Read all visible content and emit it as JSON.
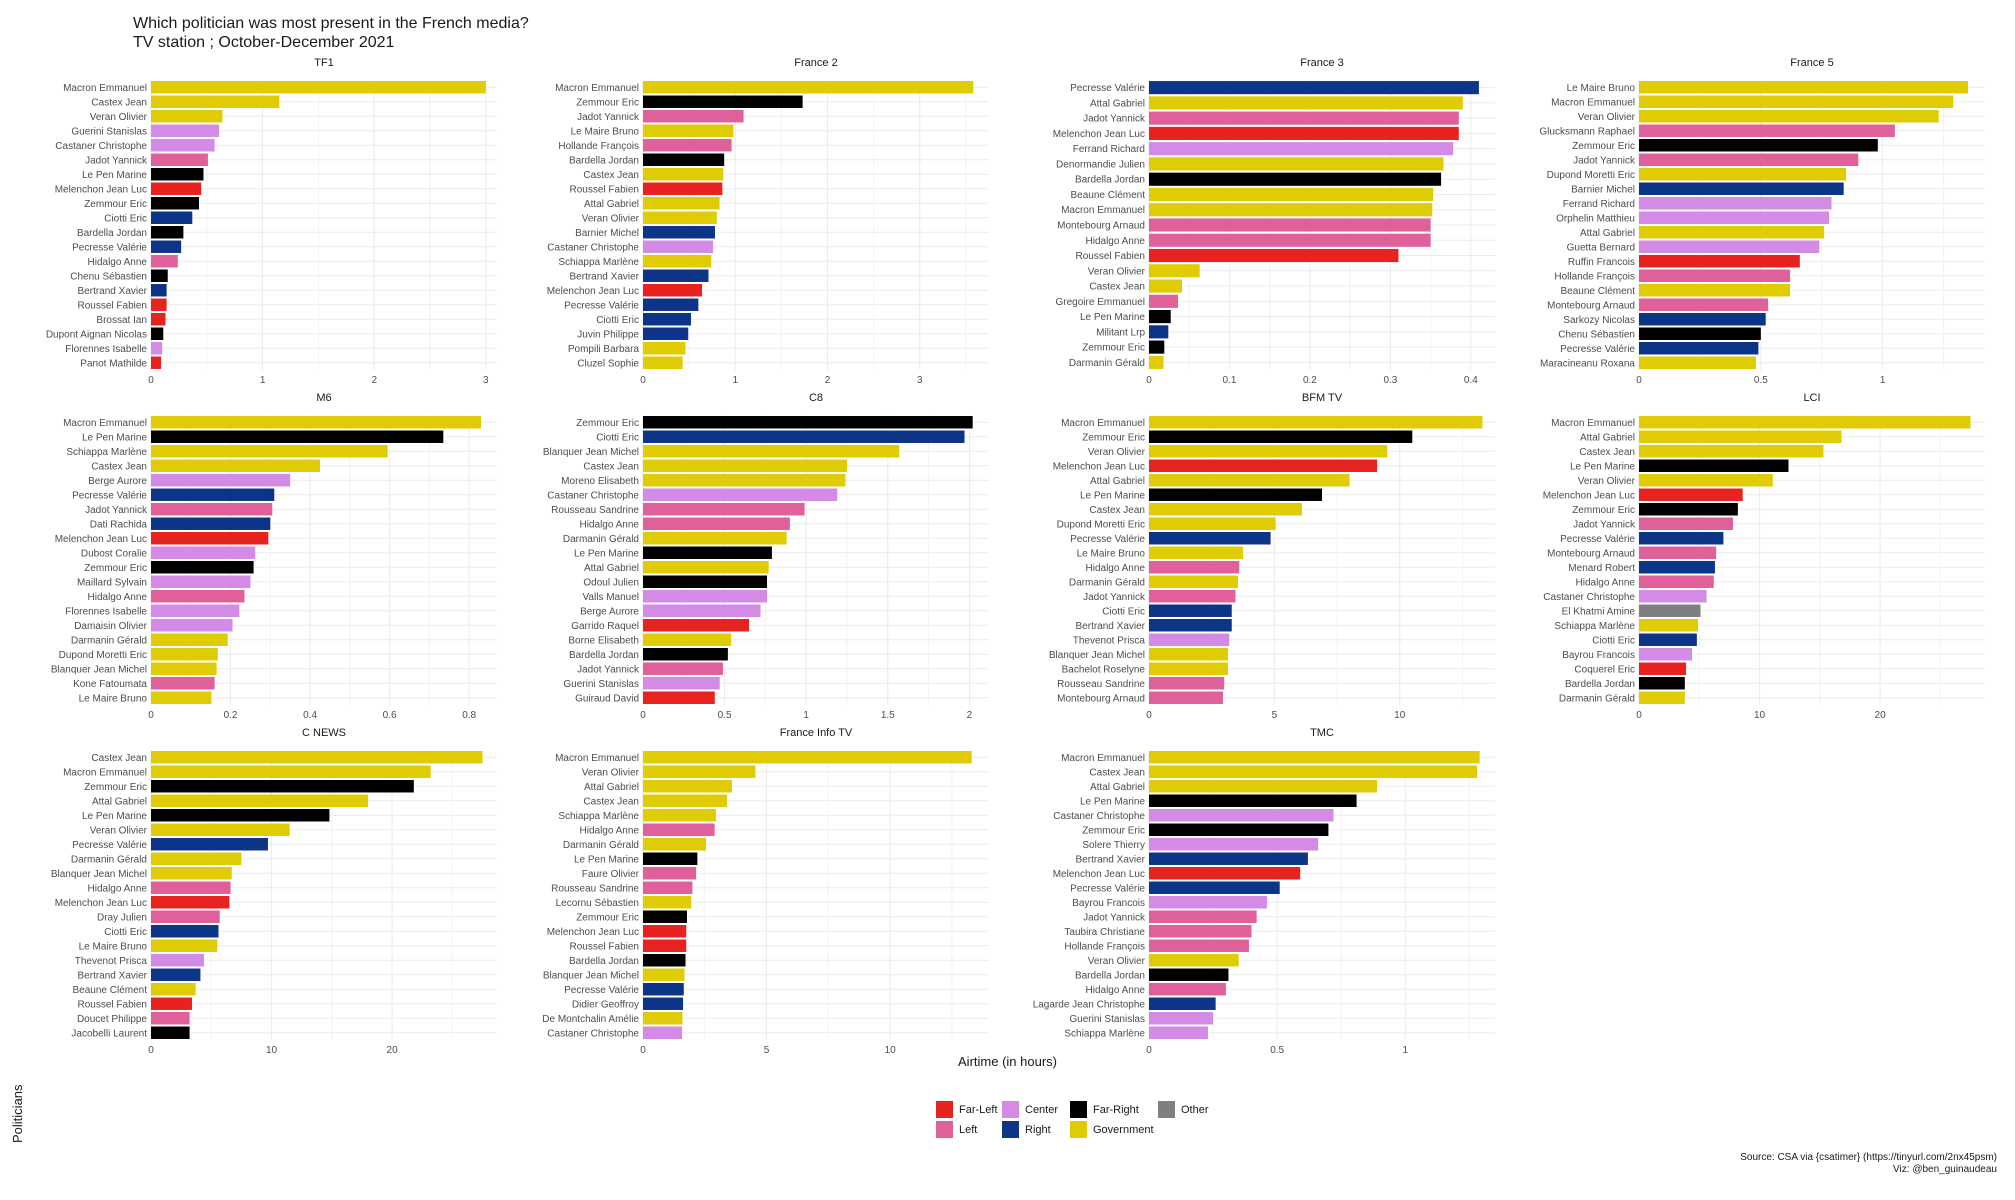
{
  "title": {
    "line1": "Which politician was most present in the French media?",
    "line2": "TV station ; October-December 2021"
  },
  "y_axis_label": "Politicians",
  "x_axis_label": "Airtime (in hours)",
  "legend": [
    {
      "key": "far_left",
      "label": "Far-Left",
      "color": "#e8231f"
    },
    {
      "key": "left",
      "label": "Left",
      "color": "#e0609b"
    },
    {
      "key": "center",
      "label": "Center",
      "color": "#d48be6"
    },
    {
      "key": "right",
      "label": "Right",
      "color": "#0d3587"
    },
    {
      "key": "far_right",
      "label": "Far-Right",
      "color": "#000000"
    },
    {
      "key": "government",
      "label": "Government",
      "color": "#e0cc05"
    },
    {
      "key": "other",
      "label": "Other",
      "color": "#7f7f7f"
    }
  ],
  "source_line1": "Source: CSA via {csatimer} (https://tinyurl.com/2nx45psm)",
  "source_line2": "Viz: @ben_guinaudeau",
  "colors": {
    "far_left": "#e8231f",
    "left": "#e0609b",
    "center": "#d48be6",
    "right": "#0d3587",
    "far_right": "#000000",
    "government": "#e0cc05",
    "other": "#7f7f7f",
    "grid": "#ebebeb"
  },
  "chart_data": [
    {
      "type": "bar",
      "orientation": "horizontal",
      "title": "TF1",
      "xlim": [
        0,
        3.1
      ],
      "ticks": [
        0,
        1,
        2,
        3
      ],
      "categories": [
        "Macron Emmanuel",
        "Castex Jean",
        "Veran Olivier",
        "Guerini Stanislas",
        "Castaner Christophe",
        "Jadot Yannick",
        "Le Pen Marine",
        "Melenchon Jean Luc",
        "Zemmour Eric",
        "Ciotti Eric",
        "Bardella Jordan",
        "Pecresse Valérie",
        "Hidalgo Anne",
        "Chenu Sébastien",
        "Bertrand Xavier",
        "Roussel Fabien",
        "Brossat Ian",
        "Dupont Aignan Nicolas",
        "Florennes Isabelle",
        "Panot Mathilde"
      ],
      "values": [
        3.0,
        1.15,
        0.64,
        0.61,
        0.57,
        0.51,
        0.47,
        0.45,
        0.43,
        0.37,
        0.29,
        0.27,
        0.24,
        0.15,
        0.14,
        0.14,
        0.13,
        0.11,
        0.1,
        0.09
      ],
      "groups": [
        "government",
        "government",
        "government",
        "center",
        "center",
        "left",
        "far_right",
        "far_left",
        "far_right",
        "right",
        "far_right",
        "right",
        "left",
        "far_right",
        "right",
        "far_left",
        "far_left",
        "far_right",
        "center",
        "far_left"
      ]
    },
    {
      "type": "bar",
      "orientation": "horizontal",
      "title": "France 2",
      "xlim": [
        0,
        3.75
      ],
      "ticks": [
        0,
        1,
        2,
        3
      ],
      "categories": [
        "Macron Emmanuel",
        "Zemmour Eric",
        "Jadot Yannick",
        "Le Maire Bruno",
        "Hollande François",
        "Bardella Jordan",
        "Castex Jean",
        "Roussel Fabien",
        "Attal Gabriel",
        "Veran Olivier",
        "Barnier Michel",
        "Castaner Christophe",
        "Schiappa Marlène",
        "Bertrand Xavier",
        "Melenchon Jean Luc",
        "Pecresse Valérie",
        "Ciotti Eric",
        "Juvin Philippe",
        "Pompili Barbara",
        "Cluzel Sophie"
      ],
      "values": [
        3.58,
        1.73,
        1.09,
        0.98,
        0.96,
        0.88,
        0.87,
        0.86,
        0.83,
        0.8,
        0.78,
        0.76,
        0.74,
        0.71,
        0.64,
        0.6,
        0.52,
        0.49,
        0.46,
        0.43
      ],
      "groups": [
        "government",
        "far_right",
        "left",
        "government",
        "left",
        "far_right",
        "government",
        "far_left",
        "government",
        "government",
        "right",
        "center",
        "government",
        "right",
        "far_left",
        "right",
        "right",
        "right",
        "government",
        "government"
      ]
    },
    {
      "type": "bar",
      "orientation": "horizontal",
      "title": "France 3",
      "xlim": [
        0,
        0.43
      ],
      "ticks": [
        0,
        0.1,
        0.2,
        0.3,
        0.4
      ],
      "categories": [
        "Pecresse Valérie",
        "Attal Gabriel",
        "Jadot Yannick",
        "Melenchon Jean Luc",
        "Ferrand Richard",
        "Denormandie Julien",
        "Bardella Jordan",
        "Beaune Clément",
        "Macron Emmanuel",
        "Montebourg Arnaud",
        "Hidalgo Anne",
        "Roussel Fabien",
        "Veran Olivier",
        "Castex Jean",
        "Gregoire Emmanuel",
        "Le Pen Marine",
        "Militant Lrp",
        "Zemmour Eric",
        "Darmanin Gérald"
      ],
      "values": [
        0.41,
        0.39,
        0.385,
        0.385,
        0.378,
        0.366,
        0.363,
        0.353,
        0.352,
        0.35,
        0.35,
        0.31,
        0.063,
        0.041,
        0.036,
        0.027,
        0.024,
        0.019,
        0.018
      ],
      "groups": [
        "right",
        "government",
        "left",
        "far_left",
        "center",
        "government",
        "far_right",
        "government",
        "government",
        "left",
        "left",
        "far_left",
        "government",
        "government",
        "left",
        "far_right",
        "right",
        "far_right",
        "government"
      ]
    },
    {
      "type": "bar",
      "orientation": "horizontal",
      "title": "France 5",
      "xlim": [
        0,
        1.42
      ],
      "ticks": [
        0,
        0.5,
        1.0
      ],
      "categories": [
        "Le Maire Bruno",
        "Macron Emmanuel",
        "Veran Olivier",
        "Glucksmann Raphael",
        "Zemmour Eric",
        "Jadot Yannick",
        "Dupond Moretti Eric",
        "Barnier Michel",
        "Ferrand Richard",
        "Orphelin Matthieu",
        "Attal Gabriel",
        "Guetta Bernard",
        "Ruffin Francois",
        "Hollande François",
        "Beaune Clément",
        "Montebourg Arnaud",
        "Sarkozy Nicolas",
        "Chenu Sébastien",
        "Pecresse Valérie",
        "Maracineanu Roxana"
      ],
      "values": [
        1.35,
        1.29,
        1.23,
        1.05,
        0.98,
        0.9,
        0.85,
        0.84,
        0.79,
        0.78,
        0.76,
        0.74,
        0.66,
        0.62,
        0.62,
        0.53,
        0.52,
        0.5,
        0.49,
        0.48
      ],
      "groups": [
        "government",
        "government",
        "government",
        "left",
        "far_right",
        "left",
        "government",
        "right",
        "center",
        "center",
        "government",
        "center",
        "far_left",
        "left",
        "government",
        "left",
        "right",
        "far_right",
        "right",
        "government"
      ]
    },
    {
      "type": "bar",
      "orientation": "horizontal",
      "title": "M6",
      "xlim": [
        0,
        0.87
      ],
      "ticks": [
        0,
        0.2,
        0.4,
        0.6,
        0.8
      ],
      "categories": [
        "Macron Emmanuel",
        "Le Pen Marine",
        "Schiappa Marlène",
        "Castex Jean",
        "Berge Aurore",
        "Pecresse Valérie",
        "Jadot Yannick",
        "Dati Rachida",
        "Melenchon Jean Luc",
        "Dubost Coralie",
        "Zemmour Eric",
        "Maillard Sylvain",
        "Hidalgo Anne",
        "Florennes Isabelle",
        "Damaisin Olivier",
        "Darmanin Gérald",
        "Dupond Moretti Eric",
        "Blanquer Jean Michel",
        "Kone Fatoumata",
        "Le Maire Bruno"
      ],
      "values": [
        0.83,
        0.735,
        0.595,
        0.425,
        0.35,
        0.31,
        0.305,
        0.3,
        0.295,
        0.262,
        0.258,
        0.25,
        0.235,
        0.222,
        0.205,
        0.193,
        0.168,
        0.165,
        0.16,
        0.152
      ],
      "groups": [
        "government",
        "far_right",
        "government",
        "government",
        "center",
        "right",
        "left",
        "right",
        "far_left",
        "center",
        "far_right",
        "center",
        "left",
        "center",
        "center",
        "government",
        "government",
        "government",
        "left",
        "government"
      ]
    },
    {
      "type": "bar",
      "orientation": "horizontal",
      "title": "C8",
      "xlim": [
        0,
        2.12
      ],
      "ticks": [
        0,
        0.5,
        1.0,
        1.5,
        2.0
      ],
      "categories": [
        "Zemmour Eric",
        "Ciotti Eric",
        "Blanquer Jean Michel",
        "Castex Jean",
        "Moreno Elisabeth",
        "Castaner Christophe",
        "Rousseau Sandrine",
        "Hidalgo Anne",
        "Darmanin Gérald",
        "Le Pen Marine",
        "Attal Gabriel",
        "Odoul Julien",
        "Valls Manuel",
        "Berge Aurore",
        "Garrido Raquel",
        "Borne Elisabeth",
        "Bardella Jordan",
        "Jadot Yannick",
        "Guerini Stanislas",
        "Guiraud David"
      ],
      "values": [
        2.02,
        1.97,
        1.57,
        1.25,
        1.24,
        1.19,
        0.99,
        0.9,
        0.88,
        0.79,
        0.77,
        0.76,
        0.76,
        0.72,
        0.65,
        0.54,
        0.52,
        0.49,
        0.47,
        0.44
      ],
      "groups": [
        "far_right",
        "right",
        "government",
        "government",
        "government",
        "center",
        "left",
        "left",
        "government",
        "far_right",
        "government",
        "far_right",
        "center",
        "center",
        "far_left",
        "government",
        "far_right",
        "left",
        "center",
        "far_left"
      ]
    },
    {
      "type": "bar",
      "orientation": "horizontal",
      "title": "BFM TV",
      "xlim": [
        0,
        13.8
      ],
      "ticks": [
        0,
        5,
        10
      ],
      "categories": [
        "Macron Emmanuel",
        "Zemmour Eric",
        "Veran Olivier",
        "Melenchon Jean Luc",
        "Attal Gabriel",
        "Le Pen Marine",
        "Castex Jean",
        "Dupond Moretti Eric",
        "Pecresse Valérie",
        "Le Maire Bruno",
        "Hidalgo Anne",
        "Darmanin Gérald",
        "Jadot Yannick",
        "Ciotti Eric",
        "Bertrand Xavier",
        "Thevenot Prisca",
        "Blanquer Jean Michel",
        "Bachelot Roselyne",
        "Rousseau Sandrine",
        "Montebourg Arnaud"
      ],
      "values": [
        13.3,
        10.5,
        9.5,
        9.1,
        8.0,
        6.9,
        6.1,
        5.05,
        4.85,
        3.75,
        3.6,
        3.55,
        3.45,
        3.3,
        3.3,
        3.2,
        3.15,
        3.15,
        3.0,
        2.95
      ],
      "groups": [
        "government",
        "far_right",
        "government",
        "far_left",
        "government",
        "far_right",
        "government",
        "government",
        "right",
        "government",
        "left",
        "government",
        "left",
        "right",
        "right",
        "center",
        "government",
        "government",
        "left",
        "left"
      ]
    },
    {
      "type": "bar",
      "orientation": "horizontal",
      "title": "LCI",
      "xlim": [
        0,
        28.7
      ],
      "ticks": [
        0,
        10,
        20
      ],
      "categories": [
        "Macron Emmanuel",
        "Attal Gabriel",
        "Castex Jean",
        "Le Pen Marine",
        "Veran Olivier",
        "Melenchon Jean Luc",
        "Zemmour Eric",
        "Jadot Yannick",
        "Pecresse Valérie",
        "Montebourg Arnaud",
        "Menard Robert",
        "Hidalgo Anne",
        "Castaner Christophe",
        "El Khatmi Amine",
        "Schiappa Marlène",
        "Ciotti Eric",
        "Bayrou Francois",
        "Coquerel Eric",
        "Bardella Jordan",
        "Darmanin Gérald"
      ],
      "values": [
        27.5,
        16.8,
        15.3,
        12.4,
        11.1,
        8.6,
        8.2,
        7.8,
        7.0,
        6.4,
        6.3,
        6.2,
        5.6,
        5.1,
        4.9,
        4.8,
        4.4,
        3.9,
        3.8,
        3.8
      ],
      "groups": [
        "government",
        "government",
        "government",
        "far_right",
        "government",
        "far_left",
        "far_right",
        "left",
        "right",
        "left",
        "right",
        "left",
        "center",
        "other",
        "government",
        "right",
        "center",
        "far_left",
        "far_right",
        "government"
      ]
    },
    {
      "type": "bar",
      "orientation": "horizontal",
      "title": "C NEWS",
      "xlim": [
        0,
        28.7
      ],
      "ticks": [
        0,
        10,
        20
      ],
      "categories": [
        "Castex Jean",
        "Macron Emmanuel",
        "Zemmour Eric",
        "Attal Gabriel",
        "Le Pen Marine",
        "Veran Olivier",
        "Pecresse Valérie",
        "Darmanin Gérald",
        "Blanquer Jean Michel",
        "Hidalgo Anne",
        "Melenchon Jean Luc",
        "Dray Julien",
        "Ciotti Eric",
        "Le Maire Bruno",
        "Thevenot Prisca",
        "Bertrand Xavier",
        "Beaune Clément",
        "Roussel Fabien",
        "Doucet Philippe",
        "Jacobelli Laurent"
      ],
      "values": [
        27.5,
        23.2,
        21.8,
        18.0,
        14.8,
        11.5,
        9.7,
        7.5,
        6.7,
        6.6,
        6.5,
        5.7,
        5.6,
        5.5,
        4.4,
        4.1,
        3.7,
        3.4,
        3.2,
        3.2
      ],
      "groups": [
        "government",
        "government",
        "far_right",
        "government",
        "far_right",
        "government",
        "right",
        "government",
        "government",
        "left",
        "far_left",
        "left",
        "right",
        "government",
        "center",
        "right",
        "government",
        "far_left",
        "left",
        "far_right"
      ]
    },
    {
      "type": "bar",
      "orientation": "horizontal",
      "title": "France Info TV",
      "xlim": [
        0,
        14.0
      ],
      "ticks": [
        0,
        5,
        10
      ],
      "categories": [
        "Macron Emmanuel",
        "Veran Olivier",
        "Attal Gabriel",
        "Castex Jean",
        "Schiappa Marlène",
        "Hidalgo Anne",
        "Darmanin Gérald",
        "Le Pen Marine",
        "Faure Olivier",
        "Rousseau Sandrine",
        "Lecornu Sébastien",
        "Zemmour Eric",
        "Melenchon Jean Luc",
        "Roussel Fabien",
        "Bardella Jordan",
        "Blanquer Jean Michel",
        "Pecresse Valérie",
        "Didier Geoffroy",
        "De Montchalin Amélie",
        "Castaner Christophe"
      ],
      "values": [
        13.3,
        4.55,
        3.6,
        3.4,
        2.95,
        2.9,
        2.55,
        2.2,
        2.15,
        2.0,
        1.95,
        1.78,
        1.75,
        1.75,
        1.72,
        1.68,
        1.65,
        1.62,
        1.6,
        1.58
      ],
      "groups": [
        "government",
        "government",
        "government",
        "government",
        "government",
        "left",
        "government",
        "far_right",
        "left",
        "left",
        "government",
        "far_right",
        "far_left",
        "far_left",
        "far_right",
        "government",
        "right",
        "right",
        "government",
        "center"
      ]
    },
    {
      "type": "bar",
      "orientation": "horizontal",
      "title": "TMC",
      "xlim": [
        0,
        1.35
      ],
      "ticks": [
        0,
        0.5,
        1.0
      ],
      "categories": [
        "Macron Emmanuel",
        "Castex Jean",
        "Attal Gabriel",
        "Le Pen Marine",
        "Castaner Christophe",
        "Zemmour Eric",
        "Solere Thierry",
        "Bertrand Xavier",
        "Melenchon Jean Luc",
        "Pecresse Valérie",
        "Bayrou Francois",
        "Jadot Yannick",
        "Taubira Christiane",
        "Hollande François",
        "Veran Olivier",
        "Bardella Jordan",
        "Hidalgo Anne",
        "Lagarde Jean Christophe",
        "Guerini Stanislas",
        "Schiappa Marlène"
      ],
      "values": [
        1.29,
        1.28,
        0.89,
        0.81,
        0.72,
        0.7,
        0.66,
        0.62,
        0.59,
        0.51,
        0.46,
        0.42,
        0.4,
        0.39,
        0.35,
        0.31,
        0.3,
        0.26,
        0.25,
        0.23
      ],
      "groups": [
        "government",
        "government",
        "government",
        "far_right",
        "center",
        "far_right",
        "center",
        "right",
        "far_left",
        "right",
        "center",
        "left",
        "left",
        "left",
        "government",
        "far_right",
        "left",
        "right",
        "center",
        "center"
      ]
    }
  ]
}
